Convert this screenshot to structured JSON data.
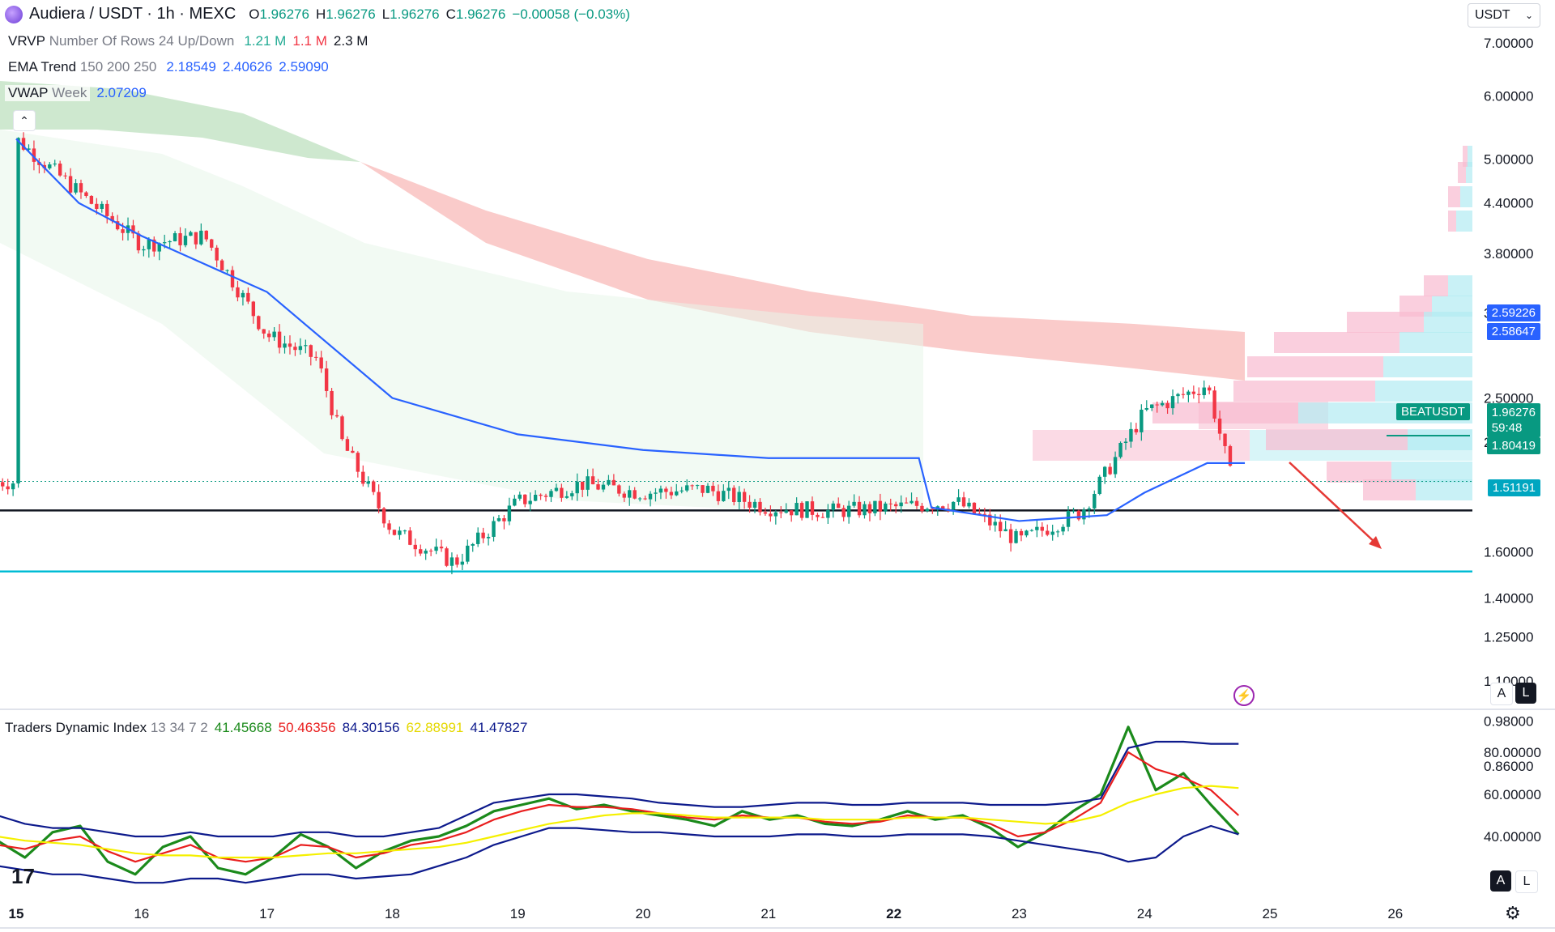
{
  "header": {
    "symbol": "Audiera / USDT · 1h · MEXC",
    "o_label": "O",
    "o_val": "1.96276",
    "h_label": "H",
    "h_val": "1.96276",
    "l_label": "L",
    "l_val": "1.96276",
    "c_label": "C",
    "c_val": "1.96276",
    "change": "−0.00058 (−0.03%)"
  },
  "indicators": {
    "vrvp": {
      "name": "VRVP",
      "params": "Number Of Rows 24 Up/Down",
      "v1": "1.21 M",
      "v2": "1.1 M",
      "v3": "2.3 M"
    },
    "ema": {
      "name": "EMA Trend",
      "params": "150 200 250",
      "v1": "2.18549",
      "v2": "2.40626",
      "v3": "2.59090"
    },
    "vwap": {
      "name": "VWAP",
      "params": "Week",
      "v1": "2.07209"
    },
    "tdi": {
      "name": "Traders Dynamic Index",
      "params": "13 34 7 2",
      "v1": "41.45668",
      "v2": "50.46356",
      "v3": "84.30156",
      "v4": "62.88991",
      "v5": "41.47827"
    }
  },
  "currency_select": {
    "value": "USDT",
    "chevron": "chevron-down-icon"
  },
  "price_tags": {
    "symbol_tag": "BEATUSDT",
    "last": "1.96276",
    "countdown": "59:48",
    "ema_a": "2.59226",
    "ema_b": "2.58647",
    "support": "1.80419",
    "low_line": "1.51191"
  },
  "buttons": {
    "auto": "A",
    "log": "L",
    "auto2": "A",
    "log2": "L"
  },
  "colors": {
    "up": "#089981",
    "down": "#f23645",
    "vwap": "#2962ff",
    "ema_band_down": "#f7a9a7",
    "ema_band_up": "#a5d6a7",
    "tdi_green": "#1b8a1b",
    "tdi_red": "#e91e1e",
    "tdi_navy": "#0d1a8c",
    "tdi_yellow": "#f5f000",
    "support_line": "#131722",
    "low_line": "#00bcd4"
  },
  "chart_data": [
    {
      "type": "candlestick",
      "title": "Audiera / USDT · 1h · MEXC",
      "y_scale": "log",
      "y_ticks": [
        "7.00000",
        "6.00000",
        "5.00000",
        "4.40000",
        "3.80000",
        "3.20000",
        "2.50000",
        "2.20000",
        "1.60000",
        "1.40000",
        "1.25000",
        "1.10000",
        "0.98000",
        "0.86000"
      ],
      "x_ticks": [
        "15",
        "16",
        "17",
        "18",
        "19",
        "20",
        "21",
        "22",
        "23",
        "24",
        "25",
        "26"
      ],
      "horizontal_levels": {
        "support": 1.80419,
        "low": 1.51191
      },
      "close_path": [
        {
          "x": "15",
          "close": 5.3
        },
        {
          "x": "15.6",
          "close": 4.4
        },
        {
          "x": "16",
          "close": 3.9
        },
        {
          "x": "16.5",
          "close": 4.0
        },
        {
          "x": "17",
          "close": 3.0
        },
        {
          "x": "17.4",
          "close": 2.8
        },
        {
          "x": "17.6",
          "close": 2.2
        },
        {
          "x": "18",
          "close": 1.7
        },
        {
          "x": "18.5",
          "close": 1.55
        },
        {
          "x": "19",
          "close": 1.85
        },
        {
          "x": "19.5",
          "close": 1.95
        },
        {
          "x": "20",
          "close": 1.9
        },
        {
          "x": "20.5",
          "close": 1.92
        },
        {
          "x": "21",
          "close": 1.82
        },
        {
          "x": "21.5",
          "close": 1.8
        },
        {
          "x": "22",
          "close": 1.82
        },
        {
          "x": "22.5",
          "close": 1.85
        },
        {
          "x": "23",
          "close": 1.65
        },
        {
          "x": "23.5",
          "close": 1.8
        },
        {
          "x": "24",
          "close": 2.4
        },
        {
          "x": "24.5",
          "close": 2.6
        },
        {
          "x": "24.7",
          "close": 1.96
        }
      ],
      "vwap_line": [
        {
          "x": "15",
          "value": 5.3
        },
        {
          "x": "15.5",
          "value": 4.4
        },
        {
          "x": "16",
          "value": 4.0
        },
        {
          "x": "17",
          "value": 3.4
        },
        {
          "x": "18",
          "value": 2.5
        },
        {
          "x": "19",
          "value": 2.25
        },
        {
          "x": "20",
          "value": 2.15
        },
        {
          "x": "21",
          "value": 2.1
        },
        {
          "x": "22.2",
          "value": 2.1
        },
        {
          "x": "22.3",
          "value": 1.82
        },
        {
          "x": "23",
          "value": 1.75
        },
        {
          "x": "23.7",
          "value": 1.78
        },
        {
          "x": "24",
          "value": 1.9
        },
        {
          "x": "24.5",
          "value": 2.07
        },
        {
          "x": "24.8",
          "value": 2.07
        }
      ]
    },
    {
      "type": "line",
      "title": "Traders Dynamic Index",
      "y_ticks": [
        "80.00000",
        "60.00000",
        "40.00000"
      ],
      "series": [
        {
          "name": "41.45668",
          "color": "#1b8a1b",
          "values": [
            38,
            30,
            42,
            45,
            28,
            22,
            35,
            40,
            25,
            22,
            30,
            41,
            35,
            25,
            33,
            38,
            40,
            45,
            52,
            55,
            58,
            53,
            55,
            52,
            50,
            48,
            45,
            52,
            48,
            50,
            46,
            45,
            48,
            52,
            48,
            50,
            44,
            35,
            42,
            52,
            60,
            92,
            62,
            70,
            55,
            41
          ]
        },
        {
          "name": "50.46356",
          "color": "#e91e1e",
          "values": [
            36,
            34,
            38,
            40,
            33,
            28,
            32,
            36,
            30,
            28,
            30,
            36,
            35,
            30,
            32,
            36,
            38,
            42,
            48,
            52,
            55,
            54,
            54,
            53,
            51,
            49,
            48,
            50,
            49,
            49,
            47,
            46,
            47,
            50,
            49,
            49,
            46,
            40,
            42,
            48,
            56,
            80,
            72,
            68,
            62,
            50
          ]
        },
        {
          "name": "84.30156",
          "color": "#0d1a8c",
          "values": [
            50,
            46,
            44,
            44,
            42,
            40,
            40,
            42,
            40,
            40,
            40,
            42,
            42,
            40,
            40,
            42,
            44,
            50,
            56,
            58,
            60,
            60,
            59,
            58,
            56,
            55,
            54,
            54,
            55,
            56,
            56,
            55,
            55,
            56,
            56,
            56,
            55,
            55,
            55,
            56,
            58,
            82,
            85,
            85,
            84,
            84
          ]
        },
        {
          "name": "62.88991",
          "color": "#f5f000",
          "values": [
            40,
            38,
            37,
            36,
            34,
            32,
            31,
            31,
            30,
            30,
            30,
            31,
            32,
            32,
            33,
            34,
            35,
            37,
            40,
            43,
            46,
            48,
            50,
            51,
            51,
            50,
            49,
            49,
            49,
            49,
            48,
            48,
            48,
            49,
            49,
            49,
            48,
            47,
            46,
            47,
            50,
            56,
            60,
            63,
            64,
            63
          ]
        },
        {
          "name": "41.47827",
          "color": "#0d1a8c",
          "values": [
            26,
            24,
            22,
            22,
            20,
            18,
            18,
            20,
            20,
            18,
            20,
            22,
            22,
            20,
            21,
            22,
            26,
            30,
            36,
            40,
            44,
            44,
            43,
            42,
            42,
            41,
            40,
            40,
            40,
            41,
            41,
            40,
            40,
            41,
            41,
            41,
            40,
            38,
            36,
            34,
            32,
            28,
            30,
            40,
            45,
            41
          ]
        }
      ]
    }
  ]
}
